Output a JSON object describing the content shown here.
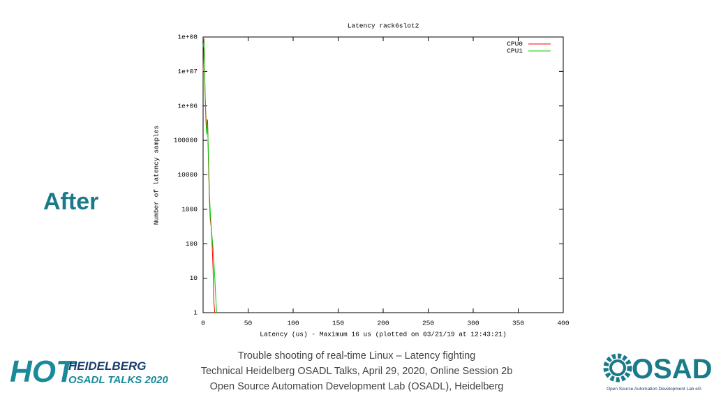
{
  "chart_data": {
    "type": "line",
    "title": "Latency rack6slot2",
    "x_label": "Latency (us) - Maximum 16 us (plotted on 03/21/19 at 12:43:21)",
    "y_label": "Number of latency samples",
    "x": [
      0,
      1,
      2,
      3,
      4,
      5,
      6,
      7,
      8,
      9,
      10,
      11,
      12,
      13,
      14,
      15
    ],
    "series": [
      {
        "name": "CPU0",
        "color": "#ff0000",
        "values": [
          10000000,
          90000000,
          3000000,
          600000,
          200000,
          400000,
          20000,
          2000,
          500,
          300,
          100,
          20,
          2,
          1,
          null,
          null
        ]
      },
      {
        "name": "CPU1",
        "color": "#00cc00",
        "values": [
          50000000,
          80000000,
          5000000,
          400000,
          150000,
          300000,
          30000,
          3000,
          800,
          300,
          150,
          80,
          30,
          10,
          3,
          1
        ]
      }
    ],
    "xlim": [
      0,
      400
    ],
    "xticks": [
      0,
      50,
      100,
      150,
      200,
      250,
      300,
      350,
      400
    ],
    "ylim": [
      1,
      100000000
    ],
    "log_y": true,
    "yticks": [
      1,
      10,
      100,
      1000,
      10000,
      100000,
      {
        "value": 1000000,
        "label": "1e+06"
      },
      {
        "value": 10000000,
        "label": "1e+07"
      },
      {
        "value": 100000000,
        "label": "1e+08"
      }
    ],
    "grid": false,
    "legend": "upper right"
  },
  "slide": {
    "heading": "After",
    "footer": [
      "Trouble shooting of real-time Linux – Latency fighting",
      "Technical Heidelberg OSADL Talks, April 29, 2020, Online Session 2b",
      "Open Source Automation Development Lab (OSADL), Heidelberg"
    ],
    "logo_left": {
      "hot": "HOT",
      "city": "HEIDELBERG",
      "event": "OSADL TALKS 2020"
    },
    "logo_right": {
      "name": "OSADL",
      "full": "Open Source Automation Development Lab eG"
    }
  }
}
